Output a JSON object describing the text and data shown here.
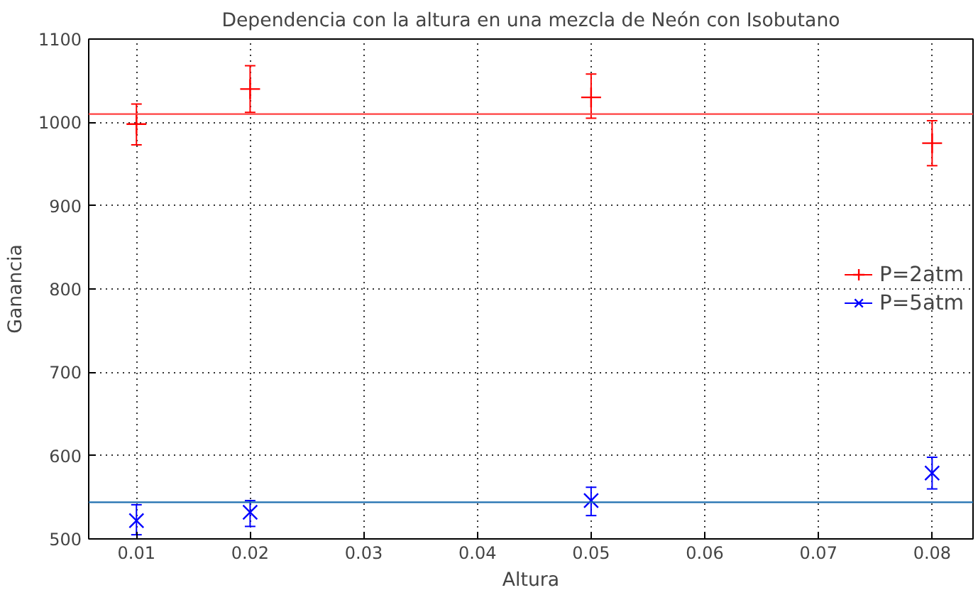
{
  "chart_data": {
    "type": "scatter",
    "title": "Dependencia con la altura en una mezcla de Neón con Isobutano",
    "xlabel": "Altura",
    "ylabel": "Ganancia",
    "x": [
      0.01,
      0.02,
      0.05,
      0.08
    ],
    "series": [
      {
        "name": "P=2atm",
        "color": "#ff0000",
        "marker": "cross",
        "values": [
          998,
          1040,
          1030,
          975
        ],
        "errors": [
          [
            973,
            1022
          ],
          [
            1012,
            1068
          ],
          [
            1005,
            1058
          ],
          [
            948,
            1002
          ]
        ]
      },
      {
        "name": "P=5atm",
        "color": "#0000ff",
        "marker": "x",
        "values": [
          522,
          532,
          546,
          579
        ],
        "errors": [
          [
            505,
            541
          ],
          [
            515,
            546
          ],
          [
            528,
            562
          ],
          [
            560,
            598
          ]
        ]
      }
    ],
    "ref_lines": [
      {
        "axis": "y",
        "value": 1010,
        "color": "#ff4040"
      },
      {
        "axis": "y",
        "value": 544,
        "color": "#1f6fb0"
      }
    ],
    "xlim": [
      0.0058,
      0.0836
    ],
    "ylim": [
      500,
      1100
    ],
    "xticks": [
      0.01,
      0.02,
      0.03,
      0.04,
      0.05,
      0.06,
      0.07,
      0.08
    ],
    "yticks": [
      500,
      600,
      700,
      800,
      900,
      1000,
      1100
    ],
    "grid": true,
    "legend": "right"
  }
}
